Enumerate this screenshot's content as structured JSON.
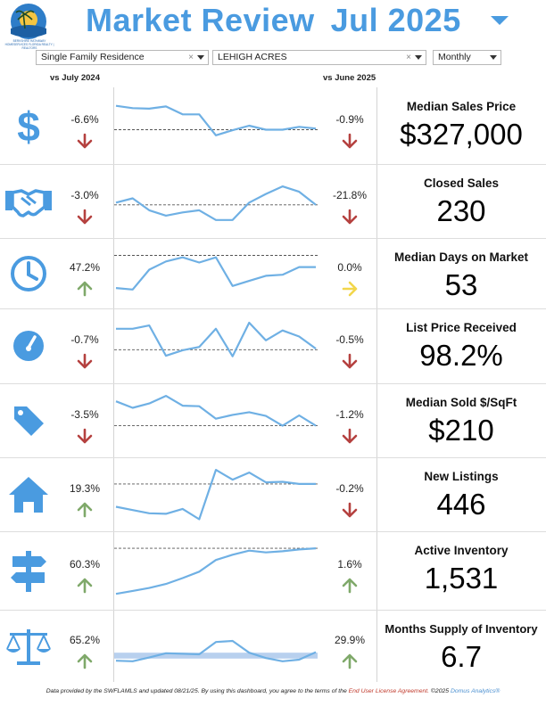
{
  "header": {
    "title": "Market Review",
    "period": "Jul 2025",
    "logo_text": "BERKSHIRE HATHAWAY HOMESERVICES FLORIDA REALTY | REALTORS"
  },
  "filters": {
    "property_type": "Single Family Residence",
    "area": "LEHIGH ACRES",
    "frequency": "Monthly",
    "clear_symbol": "×"
  },
  "columns": {
    "yoy": "vs July 2024",
    "mom": "vs June 2025"
  },
  "colors": {
    "accent": "#4a9be0",
    "up": "#7fa96a",
    "down": "#b5413f",
    "neutral": "#f2d64b",
    "spark": "#6fb0e4",
    "band": "#b8d0ee"
  },
  "metrics": [
    {
      "label": "Median Sales Price",
      "value": "$327,000",
      "yoy": "-6.6%",
      "yoy_dir": "down",
      "mom": "-0.9%",
      "mom_dir": "down",
      "icon": "dollar-icon",
      "spark": [
        100,
        96,
        95,
        99,
        85,
        85,
        48,
        57,
        65,
        58,
        58,
        63,
        60
      ],
      "ref": 58,
      "ref_type": "line"
    },
    {
      "label": "Closed Sales",
      "value": "230",
      "yoy": "-3.0%",
      "yoy_dir": "down",
      "mom": "-21.8%",
      "mom_dir": "down",
      "icon": "handshake-icon",
      "spark": [
        62,
        70,
        48,
        38,
        44,
        48,
        30,
        30,
        62,
        78,
        92,
        82,
        58
      ],
      "ref": 58,
      "ref_type": "line"
    },
    {
      "label": "Median Days on Market",
      "value": "53",
      "yoy": "47.2%",
      "yoy_dir": "up",
      "mom": "0.0%",
      "mom_dir": "neutral",
      "icon": "clock-icon",
      "spark": [
        36,
        33,
        72,
        88,
        96,
        86,
        96,
        40,
        50,
        60,
        62,
        77,
        77
      ],
      "ref": 100,
      "ref_type": "line"
    },
    {
      "label": "List Price Received",
      "value": "98.2%",
      "yoy": "-0.7%",
      "yoy_dir": "down",
      "mom": "-0.5%",
      "mom_dir": "down",
      "icon": "gauge-icon",
      "spark": [
        96,
        96,
        102,
        47,
        57,
        63,
        96,
        46,
        107,
        75,
        93,
        82,
        60
      ],
      "ref": 58,
      "ref_type": "line"
    },
    {
      "label": "Median Sold $/SqFt",
      "value": "$210",
      "yoy": "-3.5%",
      "yoy_dir": "down",
      "mom": "-1.2%",
      "mom_dir": "down",
      "icon": "tag-icon",
      "spark": [
        100,
        88,
        96,
        110,
        92,
        91,
        68,
        75,
        80,
        73,
        55,
        74,
        55
      ],
      "ref": 55,
      "ref_type": "line"
    },
    {
      "label": "New Listings",
      "value": "446",
      "yoy": "19.3%",
      "yoy_dir": "up",
      "mom": "-0.2%",
      "mom_dir": "down",
      "icon": "house-icon",
      "spark": [
        42,
        36,
        30,
        29,
        38,
        19,
        110,
        92,
        105,
        87,
        88,
        84,
        84
      ],
      "ref": 84,
      "ref_type": "line"
    },
    {
      "label": "Active Inventory",
      "value": "1,531",
      "yoy": "60.3%",
      "yoy_dir": "up",
      "mom": "1.6%",
      "mom_dir": "up",
      "icon": "signpost-icon",
      "spark": [
        25,
        30,
        35,
        42,
        52,
        63,
        83,
        92,
        99,
        96,
        98,
        101,
        103
      ],
      "ref": 103,
      "ref_type": "line"
    },
    {
      "label": "Months Supply of Inventory",
      "value": "6.7",
      "yoy": "65.2%",
      "yoy_dir": "up",
      "mom": "29.9%",
      "mom_dir": "up",
      "icon": "scale-icon",
      "spark": [
        38,
        37,
        44,
        52,
        51,
        50,
        73,
        75,
        53,
        43,
        37,
        40,
        54
      ],
      "ref": [
        42,
        53
      ],
      "ref_type": "band"
    }
  ],
  "footer": {
    "part1": "Data provided by the SWFLAMLS and updated 08/21/25.  By using this dashboard, you agree to the terms of the ",
    "eula": "End User License Agreement.",
    "copyright": "  ©2025 ",
    "brand": "Domus Analytics®"
  }
}
